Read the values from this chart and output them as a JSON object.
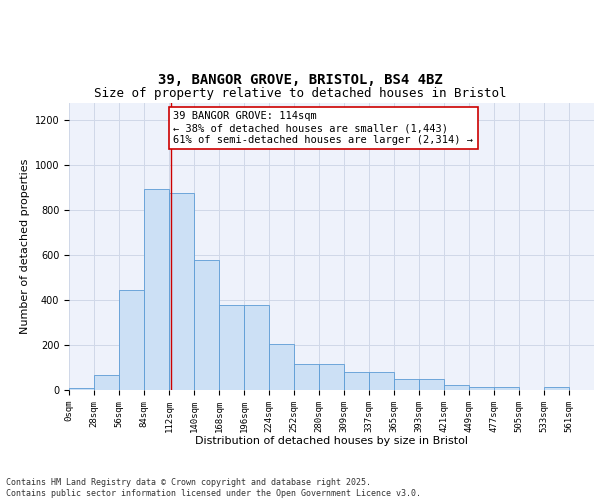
{
  "title_line1": "39, BANGOR GROVE, BRISTOL, BS4 4BZ",
  "title_line2": "Size of property relative to detached houses in Bristol",
  "xlabel": "Distribution of detached houses by size in Bristol",
  "ylabel": "Number of detached properties",
  "bin_labels": [
    "0sqm",
    "28sqm",
    "56sqm",
    "84sqm",
    "112sqm",
    "140sqm",
    "168sqm",
    "196sqm",
    "224sqm",
    "252sqm",
    "280sqm",
    "309sqm",
    "337sqm",
    "365sqm",
    "393sqm",
    "421sqm",
    "449sqm",
    "477sqm",
    "505sqm",
    "533sqm",
    "561sqm"
  ],
  "bar_values": [
    8,
    65,
    443,
    893,
    875,
    580,
    380,
    380,
    205,
    115,
    115,
    82,
    82,
    50,
    50,
    22,
    15,
    13,
    0,
    13,
    0
  ],
  "bar_color": "#cce0f5",
  "bar_edge_color": "#5b9bd5",
  "grid_color": "#d0d8e8",
  "background_color": "#eef2fb",
  "annotation_line1": "39 BANGOR GROVE: 114sqm",
  "annotation_line2": "← 38% of detached houses are smaller (1,443)",
  "annotation_line3": "61% of semi-detached houses are larger (2,314) →",
  "annotation_box_color": "#ffffff",
  "annotation_box_edgecolor": "#cc0000",
  "vline_x": 114,
  "vline_color": "#cc0000",
  "bin_width": 28,
  "ylim": [
    0,
    1280
  ],
  "yticks": [
    0,
    200,
    400,
    600,
    800,
    1000,
    1200
  ],
  "footer_text": "Contains HM Land Registry data © Crown copyright and database right 2025.\nContains public sector information licensed under the Open Government Licence v3.0.",
  "title_fontsize": 10,
  "subtitle_fontsize": 9,
  "axis_label_fontsize": 8,
  "tick_fontsize": 6.5,
  "annotation_fontsize": 7.5,
  "footer_fontsize": 6
}
